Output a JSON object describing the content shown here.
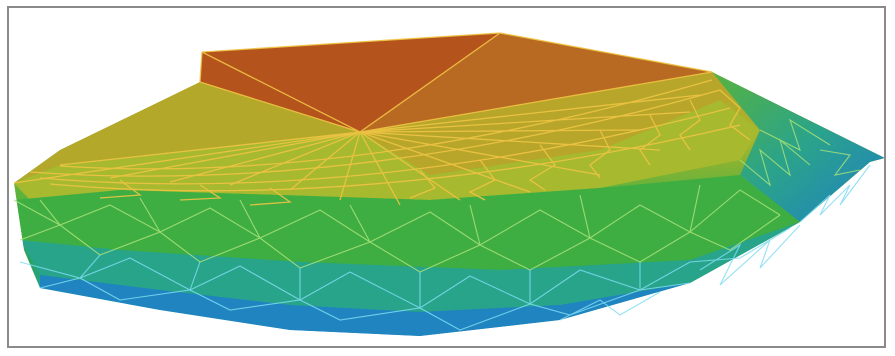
{
  "figure": {
    "kind": "triangulated surface mesh",
    "colormap": "elevation",
    "colors": {
      "high": "#b5521a",
      "upper": "#c8982a",
      "mid_upper": "#b8b428",
      "mid": "#6bb53a",
      "mid_lower": "#2fa44a",
      "lower": "#26a19a",
      "low": "#1f82c0",
      "frame_border": "#8a8a8a",
      "edge_warm": "#f0c040",
      "edge_green": "#a6e07a",
      "edge_cool": "#7fd8f0"
    }
  }
}
